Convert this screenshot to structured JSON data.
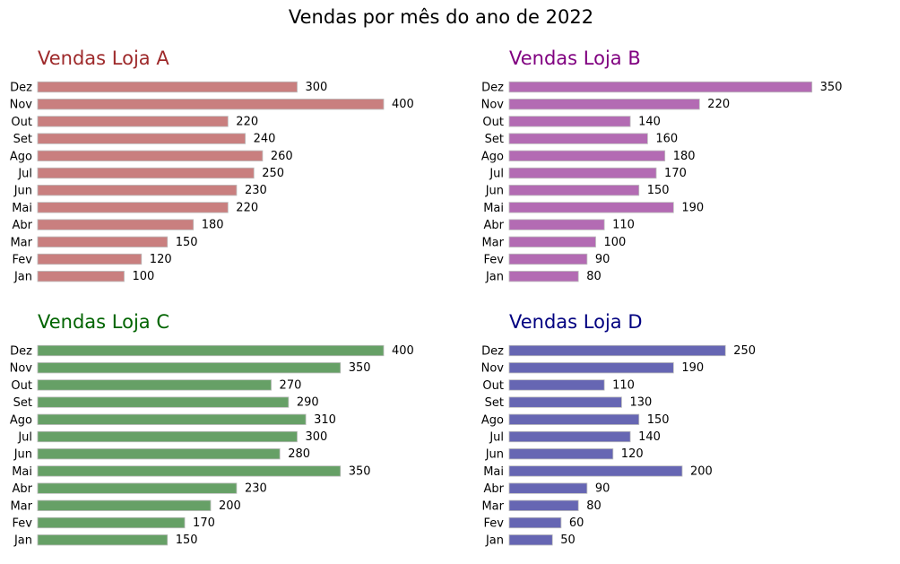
{
  "title": "Vendas por mês do ano de 2022",
  "chart_data": [
    {
      "type": "bar",
      "orientation": "horizontal",
      "title": "Vendas Loja A",
      "title_color": "#9e2a2b",
      "bar_color": "#c97f7f",
      "categories": [
        "Jan",
        "Fev",
        "Mar",
        "Abr",
        "Mai",
        "Jun",
        "Jul",
        "Ago",
        "Set",
        "Out",
        "Nov",
        "Dez"
      ],
      "values": [
        100,
        120,
        150,
        180,
        220,
        230,
        250,
        260,
        240,
        220,
        400,
        300
      ]
    },
    {
      "type": "bar",
      "orientation": "horizontal",
      "title": "Vendas Loja B",
      "title_color": "#800080",
      "bar_color": "#b36bb3",
      "categories": [
        "Jan",
        "Fev",
        "Mar",
        "Abr",
        "Mai",
        "Jun",
        "Jul",
        "Ago",
        "Set",
        "Out",
        "Nov",
        "Dez"
      ],
      "values": [
        80,
        90,
        100,
        110,
        190,
        150,
        170,
        180,
        160,
        140,
        220,
        350
      ]
    },
    {
      "type": "bar",
      "orientation": "horizontal",
      "title": "Vendas Loja C",
      "title_color": "#006400",
      "bar_color": "#66a066",
      "categories": [
        "Jan",
        "Fev",
        "Mar",
        "Abr",
        "Mai",
        "Jun",
        "Jul",
        "Ago",
        "Set",
        "Out",
        "Nov",
        "Dez"
      ],
      "values": [
        150,
        170,
        200,
        230,
        350,
        280,
        300,
        310,
        290,
        270,
        350,
        400
      ]
    },
    {
      "type": "bar",
      "orientation": "horizontal",
      "title": "Vendas Loja D",
      "title_color": "#000080",
      "bar_color": "#6666b3",
      "categories": [
        "Jan",
        "Fev",
        "Mar",
        "Abr",
        "Mai",
        "Jun",
        "Jul",
        "Ago",
        "Set",
        "Out",
        "Nov",
        "Dez"
      ],
      "values": [
        50,
        60,
        80,
        90,
        200,
        120,
        140,
        150,
        130,
        110,
        190,
        250
      ]
    }
  ]
}
